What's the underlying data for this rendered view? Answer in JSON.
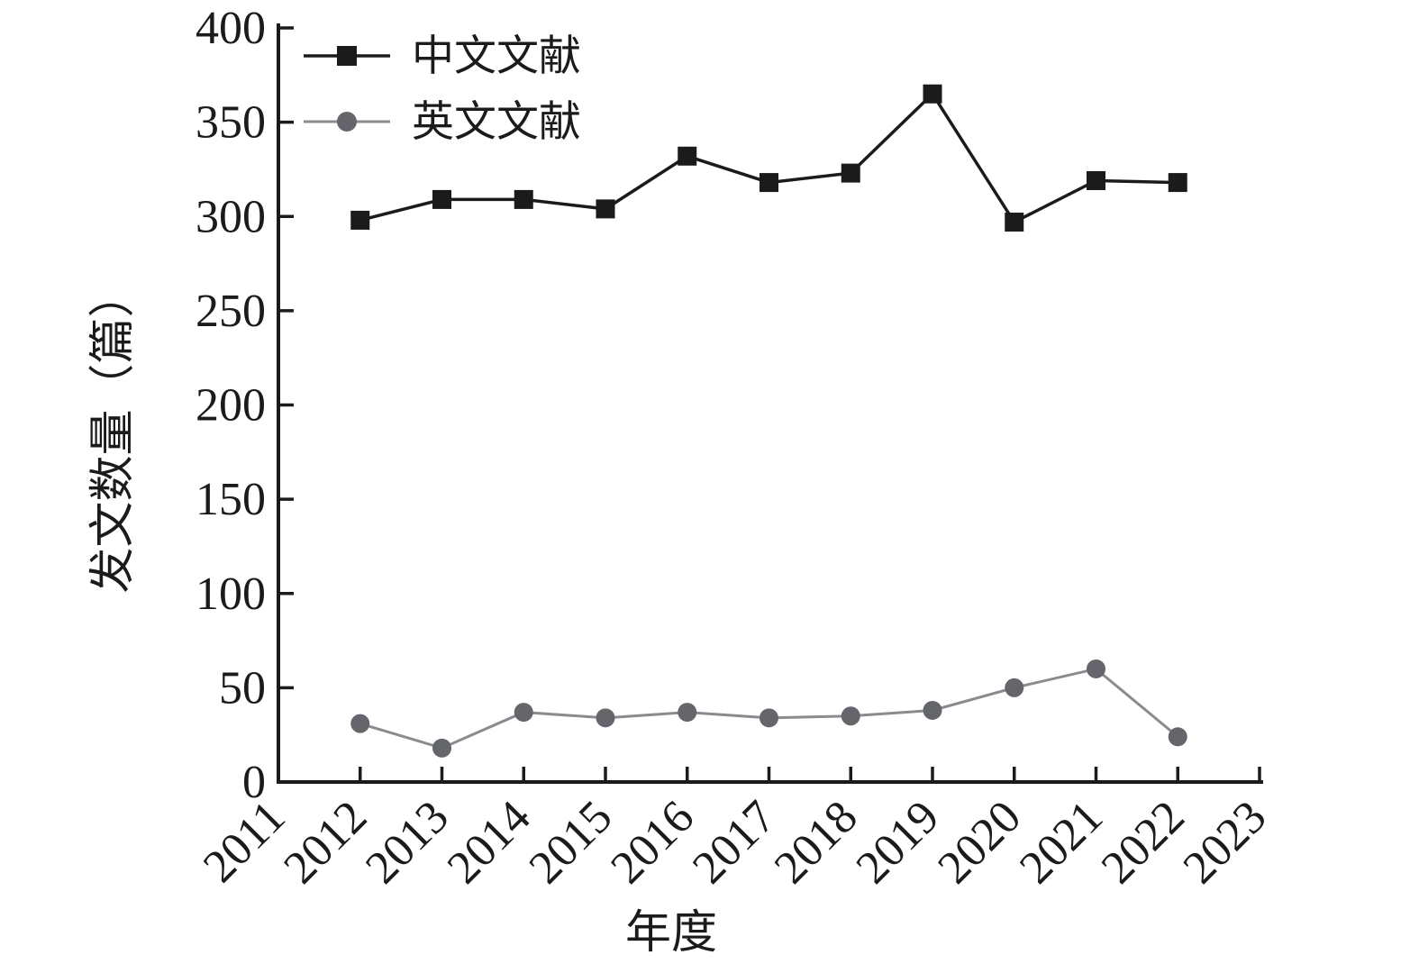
{
  "figure": {
    "background": "#ffffff"
  },
  "chart_data": {
    "type": "line",
    "title": "",
    "xlabel": "年度",
    "ylabel": "发文数量（篇）",
    "x_ticks": [
      2011,
      2012,
      2013,
      2014,
      2015,
      2016,
      2017,
      2018,
      2019,
      2020,
      2021,
      2022,
      2023
    ],
    "x": [
      2012,
      2013,
      2014,
      2015,
      2016,
      2017,
      2018,
      2019,
      2020,
      2021,
      2022
    ],
    "series": [
      {
        "name": "中文文献",
        "marker": "square",
        "marker_color": "#1b1b1b",
        "line_color": "#1b1b1b",
        "values": [
          298,
          309,
          309,
          304,
          332,
          318,
          323,
          365,
          297,
          319,
          318
        ]
      },
      {
        "name": "英文文献",
        "marker": "circle",
        "marker_color": "#64666b",
        "line_color": "#8a8b8f",
        "values": [
          31,
          18,
          37,
          34,
          37,
          34,
          35,
          38,
          50,
          60,
          24
        ]
      }
    ],
    "ylim": [
      0,
      400
    ],
    "ytick_step": 50,
    "grid": false,
    "legend_position": "top-left",
    "axis_color": "#1b1b1b"
  }
}
